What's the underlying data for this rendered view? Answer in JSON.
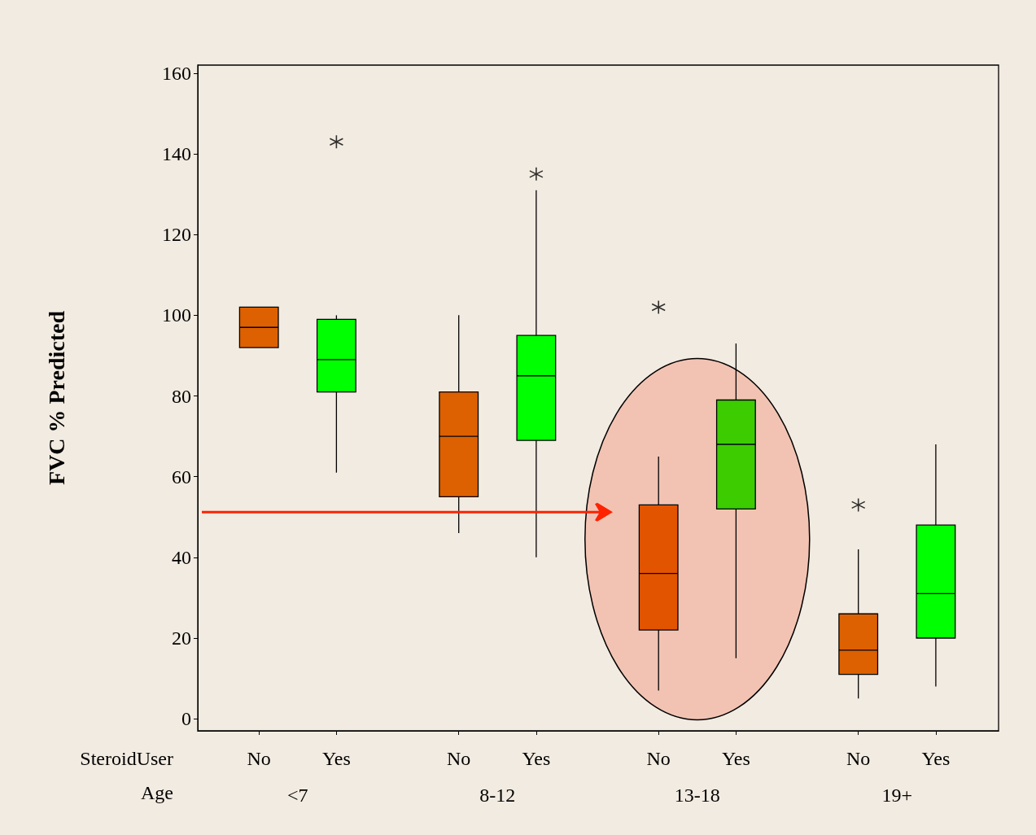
{
  "chart_data": {
    "type": "box",
    "ylabel": "FVC % Predicted",
    "categories": [
      "No",
      "Yes",
      "No",
      "Yes",
      "No",
      "Yes",
      "No",
      "Yes"
    ],
    "annotations": [
      "SteroidUser",
      "Age",
      "<7",
      "8-12",
      "13-18",
      "19+"
    ],
    "colors": [
      "#dd6100",
      "#00ff00",
      "#dd6100",
      "#00ff00",
      "#e35400",
      "#3ccc00",
      "#dd6100",
      "#00ff00"
    ],
    "boxes": [
      {
        "low": 92,
        "q1": 92,
        "median": 97,
        "q3": 102,
        "high": 102
      },
      {
        "low": 61,
        "q1": 81,
        "median": 89,
        "q3": 99,
        "high": 100,
        "outliers": [
          143
        ]
      },
      {
        "low": 46,
        "q1": 55,
        "median": 70,
        "q3": 81,
        "high": 100
      },
      {
        "low": 40,
        "q1": 69,
        "median": 85,
        "q3": 95,
        "high": 131,
        "outliers": [
          135
        ]
      },
      {
        "low": 7,
        "q1": 22,
        "median": 36,
        "q3": 53,
        "high": 65,
        "outliers": [
          102
        ]
      },
      {
        "low": 15,
        "q1": 52,
        "median": 68,
        "q3": 79,
        "high": 93
      },
      {
        "low": 5,
        "q1": 11,
        "median": 17,
        "q3": 26,
        "high": 42,
        "outliers": [
          53
        ]
      },
      {
        "low": 8,
        "q1": 20,
        "median": 31,
        "q3": 48,
        "high": 68
      }
    ],
    "ylim": [
      -3,
      162
    ],
    "yticks": [
      0,
      20,
      40,
      60,
      80,
      100,
      120,
      140,
      160
    ],
    "grid": false
  }
}
